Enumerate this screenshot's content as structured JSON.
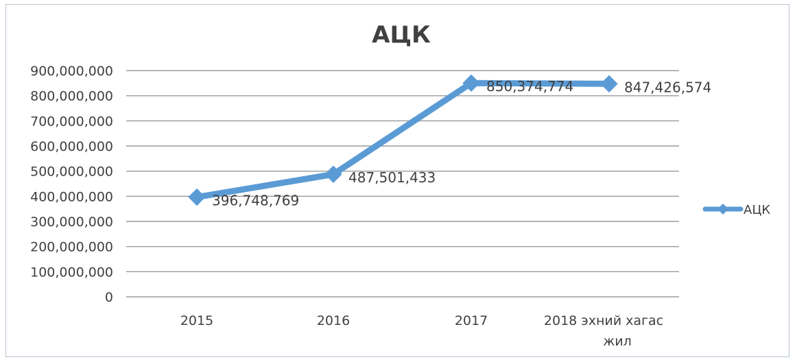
{
  "chart_data": {
    "type": "line",
    "title": "АЦК",
    "xlabel": "",
    "ylabel": "",
    "categories": [
      "2015",
      "2016",
      "2017",
      "2018 эхний хагас жил"
    ],
    "category_label_lines": [
      [
        "2015"
      ],
      [
        "2016"
      ],
      [
        "2017"
      ],
      [
        "2018  эхний хагас",
        "жил"
      ]
    ],
    "series": [
      {
        "name": "АЦК",
        "values": [
          396748769,
          487501433,
          850374774,
          847426574
        ],
        "data_labels": [
          "396,748,769",
          "487,501,433",
          "850,374,774",
          "847,426,574"
        ],
        "color": "#5b9bd5"
      }
    ],
    "ylim": [
      0,
      900000000
    ],
    "yticks": [
      {
        "value": 0,
        "label": "0"
      },
      {
        "value": 100000000,
        "label": "100,000,000"
      },
      {
        "value": 200000000,
        "label": "200,000,000"
      },
      {
        "value": 300000000,
        "label": "300,000,000"
      },
      {
        "value": 400000000,
        "label": "400,000,000"
      },
      {
        "value": 500000000,
        "label": "500,000,000"
      },
      {
        "value": 600000000,
        "label": "600,000,000"
      },
      {
        "value": 700000000,
        "label": "700,000,000"
      },
      {
        "value": 800000000,
        "label": "800,000,000"
      },
      {
        "value": 900000000,
        "label": "900,000,000"
      }
    ],
    "grid": true,
    "legend": "right",
    "marker": "diamond"
  }
}
